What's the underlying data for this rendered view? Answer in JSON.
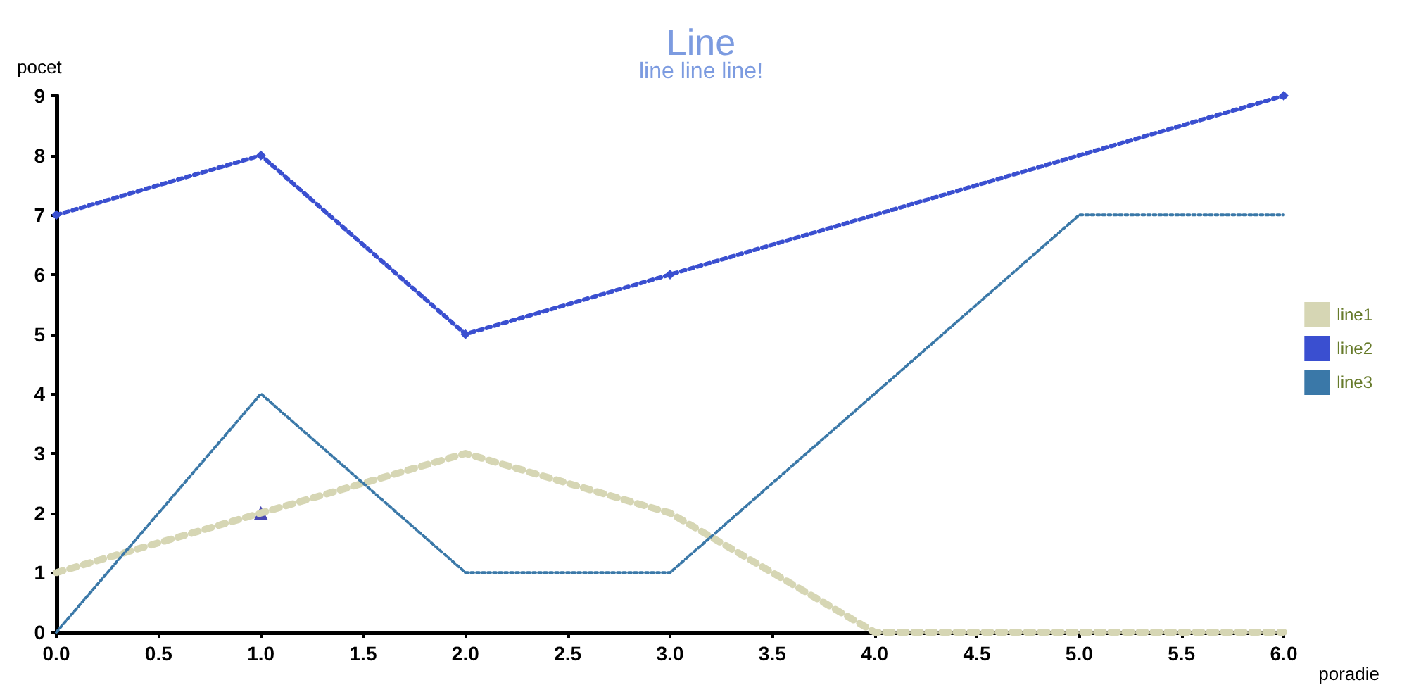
{
  "chart_data": {
    "type": "line",
    "title": "Line",
    "subtitle": "line line line!",
    "xlabel": "poradie",
    "ylabel": "pocet",
    "xlim": [
      0,
      6
    ],
    "xticks": [
      {
        "value": 0,
        "label": "0.0"
      },
      {
        "value": 0.5,
        "label": "0.5"
      },
      {
        "value": 1,
        "label": "1.0"
      },
      {
        "value": 1.5,
        "label": "1.5"
      },
      {
        "value": 2,
        "label": "2.0"
      },
      {
        "value": 2.5,
        "label": "2.5"
      },
      {
        "value": 3,
        "label": "3.0"
      },
      {
        "value": 3.5,
        "label": "3.5"
      },
      {
        "value": 4,
        "label": "4.0"
      },
      {
        "value": 4.5,
        "label": "4.5"
      },
      {
        "value": 5,
        "label": "5.0"
      },
      {
        "value": 5.5,
        "label": "5.5"
      },
      {
        "value": 6,
        "label": "6.0"
      }
    ],
    "ylim": [
      0,
      9
    ],
    "yticks": [
      0,
      1,
      2,
      3,
      4,
      5,
      6,
      7,
      8,
      9
    ],
    "grid": false,
    "legend": "right",
    "line_style": "dotted",
    "series": [
      {
        "name": "line1",
        "color": "#d6d6b4",
        "x": [
          0,
          1,
          2,
          3,
          4,
          5,
          6
        ],
        "values": [
          1,
          2,
          3,
          2,
          0,
          0,
          0
        ],
        "marker": "none"
      },
      {
        "name": "line2",
        "color": "#3a4fd0",
        "x": [
          0,
          1,
          2,
          3,
          6
        ],
        "values": [
          7,
          8,
          5,
          6,
          9
        ],
        "marker": "diamond"
      },
      {
        "name": "line3",
        "color": "#3a78a8",
        "x": [
          0,
          1,
          2,
          3,
          4,
          5,
          6
        ],
        "values": [
          0,
          4,
          1,
          1,
          4,
          7,
          7
        ],
        "marker": "none"
      },
      {
        "type": "scatter",
        "color": "#1c1ca0",
        "x": [
          1
        ],
        "values": [
          2
        ],
        "marker": "triangle"
      }
    ]
  }
}
